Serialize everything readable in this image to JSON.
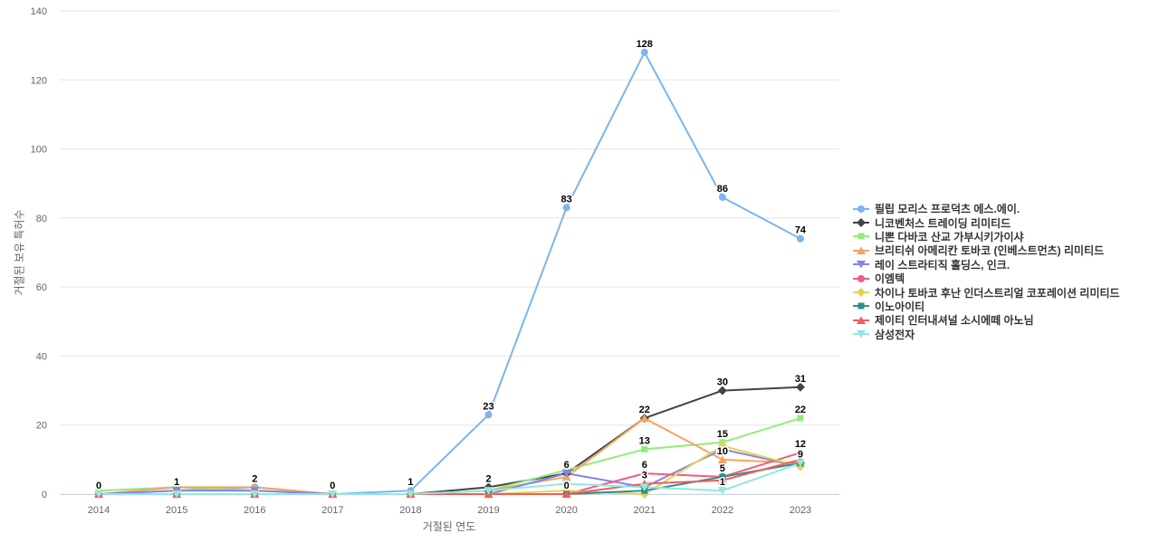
{
  "chart_data": {
    "type": "line",
    "title": "",
    "xlabel": "거절된 연도",
    "ylabel": "거절된 보유 특허수",
    "x_categories": [
      "2014",
      "2015",
      "2016",
      "2017",
      "2018",
      "2019",
      "2020",
      "2021",
      "2022",
      "2023"
    ],
    "ylim": [
      0,
      140
    ],
    "y_ticks": [
      0,
      20,
      40,
      60,
      80,
      100,
      120,
      140
    ],
    "grid": true,
    "legend_position": "right",
    "background_color": "#ffffff",
    "grid_color": "#e6e6e6",
    "axis_line_color": "#ccd6eb",
    "tick_label_color": "#666666",
    "series": [
      {
        "name": "필립 모리스 프로덕츠 에스.에이.",
        "color": "#7cb5ec",
        "marker": "circle",
        "values": [
          0,
          1,
          2,
          0,
          1,
          23,
          83,
          128,
          86,
          74
        ]
      },
      {
        "name": "니코벤처스 트레이딩 리미티드",
        "color": "#434348",
        "marker": "diamond",
        "values": [
          0,
          0,
          0,
          0,
          0,
          2,
          6,
          22,
          30,
          31
        ]
      },
      {
        "name": "니뽄 다바코 산교 가부시키가이샤",
        "color": "#90ed7d",
        "marker": "square",
        "values": [
          1,
          2,
          1,
          0,
          0,
          1,
          7,
          13,
          15,
          22
        ]
      },
      {
        "name": "브리티쉬 아메리칸 토바코 (인베스트먼츠) 리미티드",
        "color": "#f7a35c",
        "marker": "triangle",
        "values": [
          0,
          2,
          2,
          0,
          0,
          1,
          5,
          22,
          10,
          9
        ]
      },
      {
        "name": "레이 스트라티직 홀딩스, 인크.",
        "color": "#8085e9",
        "marker": "triangle-down",
        "values": [
          0,
          1,
          1,
          0,
          0,
          0,
          6,
          2,
          13,
          8
        ]
      },
      {
        "name": "이엠텍",
        "color": "#f15c80",
        "marker": "circle",
        "values": [
          0,
          0,
          0,
          0,
          0,
          0,
          0,
          6,
          5,
          12
        ]
      },
      {
        "name": "차이나 토바코 후난 인더스트리얼 코포레이션 리미티드",
        "color": "#e4d354",
        "marker": "diamond",
        "values": [
          0,
          0,
          0,
          0,
          0,
          0,
          1,
          0,
          14,
          8
        ]
      },
      {
        "name": "이노아이티",
        "color": "#2b908f",
        "marker": "square",
        "values": [
          0,
          0,
          0,
          0,
          0,
          0,
          0,
          1,
          5,
          9
        ]
      },
      {
        "name": "제이티 인터내셔널 소시에떼 아노님",
        "color": "#f45b5b",
        "marker": "triangle",
        "values": [
          0,
          0,
          0,
          0,
          0,
          0,
          0,
          3,
          4,
          10
        ]
      },
      {
        "name": "삼성전자",
        "color": "#91e8e1",
        "marker": "triangle-down",
        "values": [
          0,
          0,
          0,
          0,
          0,
          1,
          3,
          2,
          1,
          9
        ]
      }
    ],
    "data_labels": [
      {
        "s": 0,
        "i": 0,
        "t": "0"
      },
      {
        "s": 0,
        "i": 1,
        "t": "1"
      },
      {
        "s": 0,
        "i": 2,
        "t": "2"
      },
      {
        "s": 0,
        "i": 3,
        "t": "0"
      },
      {
        "s": 0,
        "i": 4,
        "t": "1"
      },
      {
        "s": 0,
        "i": 5,
        "t": "23"
      },
      {
        "s": 0,
        "i": 6,
        "t": "83"
      },
      {
        "s": 0,
        "i": 7,
        "t": "128"
      },
      {
        "s": 0,
        "i": 8,
        "t": "86"
      },
      {
        "s": 0,
        "i": 9,
        "t": "74"
      },
      {
        "s": 1,
        "i": 5,
        "t": "2"
      },
      {
        "s": 1,
        "i": 6,
        "t": "6"
      },
      {
        "s": 1,
        "i": 8,
        "t": "30"
      },
      {
        "s": 1,
        "i": 9,
        "t": "31"
      },
      {
        "s": 2,
        "i": 7,
        "t": "13"
      },
      {
        "s": 2,
        "i": 8,
        "t": "15"
      },
      {
        "s": 2,
        "i": 9,
        "t": "22"
      },
      {
        "s": 3,
        "i": 7,
        "t": "22"
      },
      {
        "s": 3,
        "i": 8,
        "t": "10"
      },
      {
        "s": 5,
        "i": 7,
        "t": "6"
      },
      {
        "s": 5,
        "i": 8,
        "t": "5"
      },
      {
        "s": 5,
        "i": 9,
        "t": "12"
      },
      {
        "s": 7,
        "i": 6,
        "t": "0"
      },
      {
        "s": 7,
        "i": 9,
        "t": "9"
      },
      {
        "s": 8,
        "i": 7,
        "t": "3"
      },
      {
        "s": 9,
        "i": 8,
        "t": "1"
      }
    ]
  }
}
